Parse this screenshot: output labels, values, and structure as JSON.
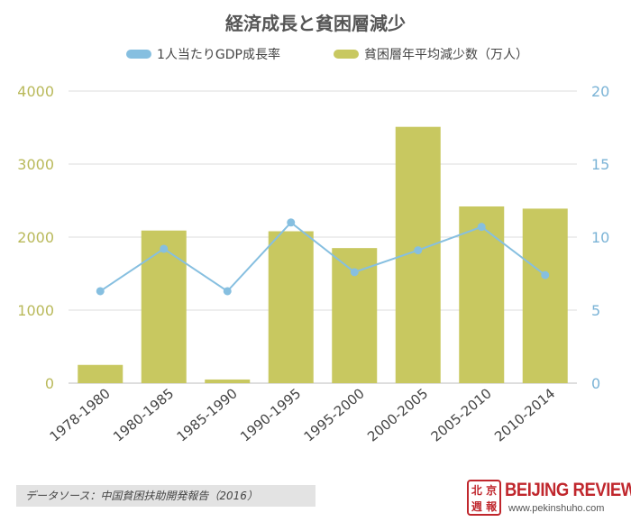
{
  "chart_data": {
    "type": "bar+line",
    "title": "経済成長と貧困層減少",
    "categories": [
      "1978-1980",
      "1980-1985",
      "1985-1990",
      "1990-1995",
      "1995-2000",
      "2000-2005",
      "2005-2010",
      "2010-2014"
    ],
    "series": [
      {
        "name": "貧困層年平均減少数（万人）",
        "type": "bar",
        "axis": "left",
        "color": "#c8c860",
        "values": [
          250,
          2090,
          50,
          2080,
          1850,
          3510,
          2420,
          2390
        ]
      },
      {
        "name": "1人当たりGDP成長率",
        "type": "line",
        "axis": "right",
        "color": "#86bfe0",
        "values": [
          6.3,
          9.2,
          6.3,
          11.0,
          7.6,
          9.1,
          10.7,
          7.4
        ]
      }
    ],
    "y_left": {
      "min": 0,
      "max": 4000,
      "ticks": [
        0,
        1000,
        2000,
        3000,
        4000
      ],
      "color": "#b9b95a"
    },
    "y_right": {
      "min": 0,
      "max": 20,
      "ticks": [
        0,
        5,
        10,
        15,
        20
      ],
      "color": "#7ab3d6"
    },
    "grid": true,
    "legend_position": "top-center"
  },
  "legend": {
    "line_label": "1人当たりGDP成長率",
    "bar_label": "貧困層年平均減少数（万人）"
  },
  "source": "データソース：中国貧困扶助開発報告（2016）",
  "brand": {
    "seal_text": "北京週報",
    "name": "BEIJING REVIEW",
    "url": "www.pekinshuho.com"
  }
}
